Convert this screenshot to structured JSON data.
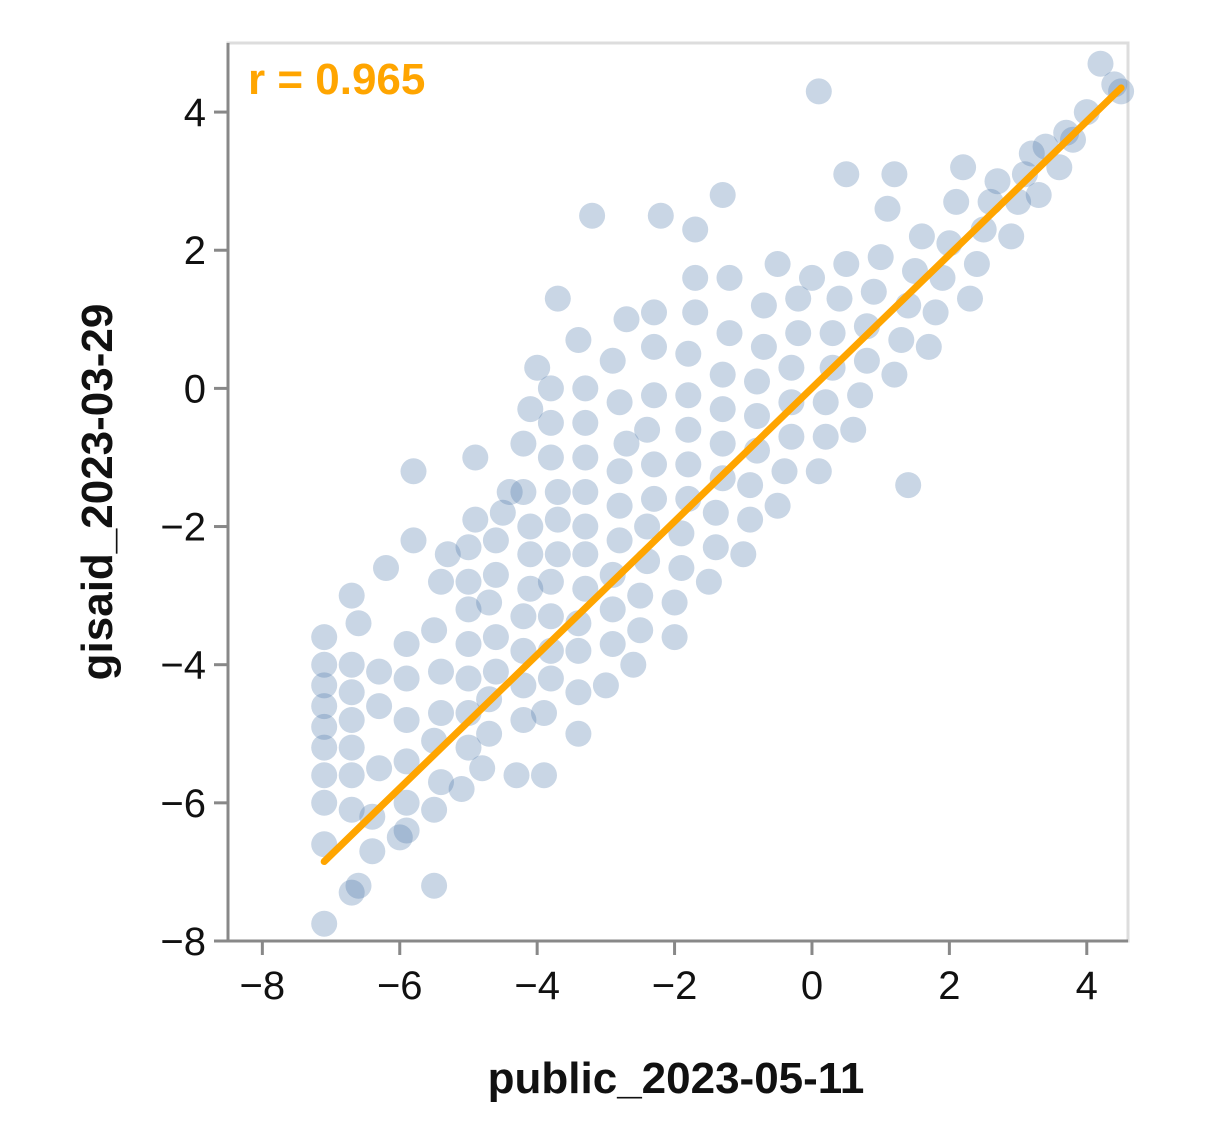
{
  "chart_data": {
    "type": "scatter",
    "xlabel": "public_2023-05-11",
    "ylabel": "gisaid_2023-03-29",
    "xlim": [
      -8.5,
      4.6
    ],
    "ylim": [
      -8,
      5
    ],
    "x_ticks": [
      -8,
      -6,
      -4,
      -2,
      0,
      2,
      4
    ],
    "y_ticks": [
      -8,
      -6,
      -4,
      -2,
      0,
      2,
      4
    ],
    "annotation": "r = 0.965",
    "point_color": "#4c78a8",
    "line_color": "#ffa500",
    "grid": false,
    "fit_line": {
      "x": [
        -7.1,
        4.5
      ],
      "y": [
        -6.85,
        4.35
      ]
    },
    "points": [
      [
        -7.1,
        -7.75
      ],
      [
        -7.1,
        -6.6
      ],
      [
        -7.1,
        -6.0
      ],
      [
        -7.1,
        -5.6
      ],
      [
        -7.1,
        -5.2
      ],
      [
        -7.1,
        -4.9
      ],
      [
        -7.1,
        -4.6
      ],
      [
        -7.1,
        -4.3
      ],
      [
        -7.1,
        -4.0
      ],
      [
        -7.1,
        -3.6
      ],
      [
        -6.7,
        -7.3
      ],
      [
        -6.6,
        -7.2
      ],
      [
        -6.7,
        -6.1
      ],
      [
        -6.7,
        -5.6
      ],
      [
        -6.7,
        -5.2
      ],
      [
        -6.7,
        -4.8
      ],
      [
        -6.7,
        -4.4
      ],
      [
        -6.7,
        -4.0
      ],
      [
        -6.6,
        -3.4
      ],
      [
        -6.7,
        -3.0
      ],
      [
        -6.4,
        -6.7
      ],
      [
        -6.4,
        -6.2
      ],
      [
        -6.3,
        -5.5
      ],
      [
        -6.3,
        -4.6
      ],
      [
        -6.3,
        -4.1
      ],
      [
        -6.2,
        -2.6
      ],
      [
        -6.0,
        -6.5
      ],
      [
        -5.9,
        -6.4
      ],
      [
        -5.9,
        -6.0
      ],
      [
        -5.9,
        -5.4
      ],
      [
        -5.9,
        -4.8
      ],
      [
        -5.9,
        -4.2
      ],
      [
        -5.9,
        -3.7
      ],
      [
        -5.8,
        -2.2
      ],
      [
        -5.8,
        -1.2
      ],
      [
        -5.5,
        -7.2
      ],
      [
        -5.5,
        -6.1
      ],
      [
        -5.4,
        -5.7
      ],
      [
        -5.5,
        -5.1
      ],
      [
        -5.4,
        -4.7
      ],
      [
        -5.4,
        -4.1
      ],
      [
        -5.5,
        -3.5
      ],
      [
        -5.4,
        -2.8
      ],
      [
        -5.3,
        -2.4
      ],
      [
        -5.1,
        -5.8
      ],
      [
        -5.0,
        -5.2
      ],
      [
        -5.0,
        -4.7
      ],
      [
        -5.0,
        -4.2
      ],
      [
        -5.0,
        -3.7
      ],
      [
        -5.0,
        -3.2
      ],
      [
        -5.0,
        -2.8
      ],
      [
        -5.0,
        -2.3
      ],
      [
        -4.9,
        -1.9
      ],
      [
        -4.9,
        -1.0
      ],
      [
        -4.8,
        -5.5
      ],
      [
        -4.7,
        -5.0
      ],
      [
        -4.7,
        -4.5
      ],
      [
        -4.6,
        -4.1
      ],
      [
        -4.6,
        -3.6
      ],
      [
        -4.7,
        -3.1
      ],
      [
        -4.6,
        -2.7
      ],
      [
        -4.6,
        -2.2
      ],
      [
        -4.5,
        -1.8
      ],
      [
        -4.4,
        -1.5
      ],
      [
        -4.3,
        -5.6
      ],
      [
        -4.2,
        -4.8
      ],
      [
        -4.2,
        -4.3
      ],
      [
        -4.2,
        -3.8
      ],
      [
        -4.2,
        -3.3
      ],
      [
        -4.1,
        -2.9
      ],
      [
        -4.1,
        -2.4
      ],
      [
        -4.1,
        -2.0
      ],
      [
        -4.2,
        -1.5
      ],
      [
        -4.2,
        -0.8
      ],
      [
        -4.1,
        -0.3
      ],
      [
        -4.0,
        0.3
      ],
      [
        -3.9,
        -5.6
      ],
      [
        -3.9,
        -4.7
      ],
      [
        -3.8,
        -4.2
      ],
      [
        -3.8,
        -3.8
      ],
      [
        -3.8,
        -3.3
      ],
      [
        -3.8,
        -2.8
      ],
      [
        -3.7,
        -2.4
      ],
      [
        -3.7,
        -1.9
      ],
      [
        -3.7,
        -1.5
      ],
      [
        -3.8,
        -1.0
      ],
      [
        -3.8,
        -0.5
      ],
      [
        -3.8,
        0.0
      ],
      [
        -3.7,
        1.3
      ],
      [
        -3.4,
        -5.0
      ],
      [
        -3.4,
        -4.4
      ],
      [
        -3.4,
        -3.8
      ],
      [
        -3.4,
        -3.4
      ],
      [
        -3.3,
        -2.9
      ],
      [
        -3.3,
        -2.4
      ],
      [
        -3.3,
        -2.0
      ],
      [
        -3.3,
        -1.5
      ],
      [
        -3.3,
        -1.0
      ],
      [
        -3.3,
        -0.5
      ],
      [
        -3.3,
        0.0
      ],
      [
        -3.4,
        0.7
      ],
      [
        -3.2,
        2.5
      ],
      [
        -3.0,
        -4.3
      ],
      [
        -2.9,
        -3.7
      ],
      [
        -2.9,
        -3.2
      ],
      [
        -2.9,
        -2.7
      ],
      [
        -2.8,
        -2.2
      ],
      [
        -2.8,
        -1.7
      ],
      [
        -2.8,
        -1.2
      ],
      [
        -2.7,
        -0.8
      ],
      [
        -2.8,
        -0.2
      ],
      [
        -2.9,
        0.4
      ],
      [
        -2.7,
        1.0
      ],
      [
        -2.6,
        -4.0
      ],
      [
        -2.5,
        -3.5
      ],
      [
        -2.5,
        -3.0
      ],
      [
        -2.4,
        -2.5
      ],
      [
        -2.4,
        -2.0
      ],
      [
        -2.3,
        -1.6
      ],
      [
        -2.3,
        -1.1
      ],
      [
        -2.4,
        -0.6
      ],
      [
        -2.3,
        -0.1
      ],
      [
        -2.3,
        0.6
      ],
      [
        -2.3,
        1.1
      ],
      [
        -2.2,
        2.5
      ],
      [
        -2.0,
        -3.6
      ],
      [
        -2.0,
        -3.1
      ],
      [
        -1.9,
        -2.6
      ],
      [
        -1.9,
        -2.1
      ],
      [
        -1.8,
        -1.6
      ],
      [
        -1.8,
        -1.1
      ],
      [
        -1.8,
        -0.6
      ],
      [
        -1.8,
        -0.1
      ],
      [
        -1.8,
        0.5
      ],
      [
        -1.7,
        1.1
      ],
      [
        -1.7,
        1.6
      ],
      [
        -1.7,
        2.3
      ],
      [
        -1.5,
        -2.8
      ],
      [
        -1.4,
        -2.3
      ],
      [
        -1.4,
        -1.8
      ],
      [
        -1.3,
        -1.3
      ],
      [
        -1.3,
        -0.8
      ],
      [
        -1.3,
        -0.3
      ],
      [
        -1.3,
        0.2
      ],
      [
        -1.2,
        0.8
      ],
      [
        -1.2,
        1.6
      ],
      [
        -1.3,
        2.8
      ],
      [
        -1.0,
        -2.4
      ],
      [
        -0.9,
        -1.9
      ],
      [
        -0.9,
        -1.4
      ],
      [
        -0.8,
        -0.9
      ],
      [
        -0.8,
        -0.4
      ],
      [
        -0.8,
        0.1
      ],
      [
        -0.7,
        0.6
      ],
      [
        -0.7,
        1.2
      ],
      [
        -0.5,
        1.8
      ],
      [
        -0.5,
        -1.7
      ],
      [
        -0.4,
        -1.2
      ],
      [
        -0.3,
        -0.7
      ],
      [
        -0.3,
        -0.2
      ],
      [
        -0.3,
        0.3
      ],
      [
        -0.2,
        0.8
      ],
      [
        -0.2,
        1.3
      ],
      [
        0.0,
        1.6
      ],
      [
        0.1,
        4.3
      ],
      [
        0.1,
        -1.2
      ],
      [
        0.2,
        -0.7
      ],
      [
        0.2,
        -0.2
      ],
      [
        0.3,
        0.3
      ],
      [
        0.3,
        0.8
      ],
      [
        0.4,
        1.3
      ],
      [
        0.5,
        1.8
      ],
      [
        0.5,
        3.1
      ],
      [
        0.6,
        -0.6
      ],
      [
        0.7,
        -0.1
      ],
      [
        0.8,
        0.4
      ],
      [
        0.8,
        0.9
      ],
      [
        0.9,
        1.4
      ],
      [
        1.0,
        1.9
      ],
      [
        1.1,
        2.6
      ],
      [
        1.2,
        3.1
      ],
      [
        1.2,
        0.2
      ],
      [
        1.3,
        0.7
      ],
      [
        1.4,
        1.2
      ],
      [
        1.5,
        1.7
      ],
      [
        1.6,
        2.2
      ],
      [
        1.4,
        -1.4
      ],
      [
        1.7,
        0.6
      ],
      [
        1.8,
        1.1
      ],
      [
        1.9,
        1.6
      ],
      [
        2.0,
        2.1
      ],
      [
        2.1,
        2.7
      ],
      [
        2.2,
        3.2
      ],
      [
        2.3,
        1.3
      ],
      [
        2.4,
        1.8
      ],
      [
        2.5,
        2.3
      ],
      [
        2.6,
        2.7
      ],
      [
        2.7,
        3.0
      ],
      [
        2.9,
        2.2
      ],
      [
        3.0,
        2.7
      ],
      [
        3.1,
        3.1
      ],
      [
        3.2,
        3.4
      ],
      [
        3.4,
        3.5
      ],
      [
        3.3,
        2.8
      ],
      [
        3.6,
        3.2
      ],
      [
        3.7,
        3.7
      ],
      [
        3.8,
        3.6
      ],
      [
        4.0,
        4.0
      ],
      [
        4.2,
        4.7
      ],
      [
        4.4,
        4.4
      ],
      [
        4.5,
        4.3
      ]
    ]
  }
}
